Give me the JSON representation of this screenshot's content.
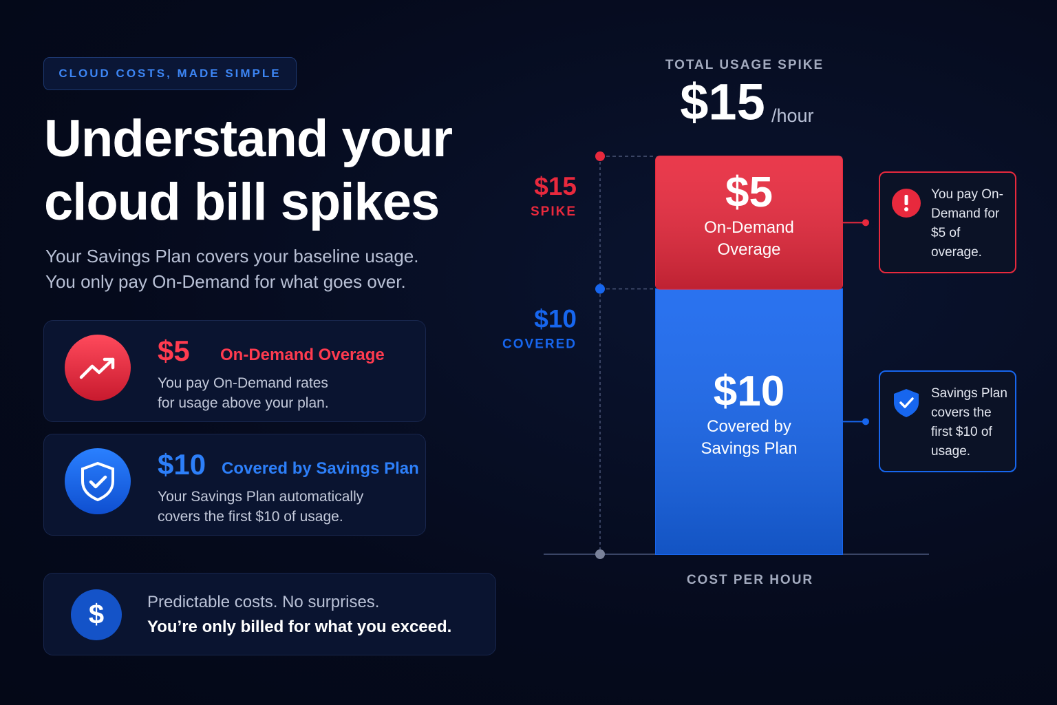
{
  "badge": "CLOUD COSTS, MADE SIMPLE",
  "title_lines": [
    "Understand your",
    "cloud bill spikes"
  ],
  "subtitle_lines": [
    "Your Savings Plan covers your baseline usage.",
    "You only pay On-Demand for what goes over."
  ],
  "cards": [
    {
      "amount": "$5",
      "label": "On-Demand Overage",
      "text_lines": [
        "You pay On-Demand rates",
        "for usage above your plan."
      ]
    },
    {
      "amount": "$10",
      "label": "Covered by Savings Plan",
      "text_lines": [
        "Your Savings Plan automatically",
        "covers the first $10 of usage."
      ]
    }
  ],
  "footer": {
    "line1": "Predictable costs. No surprises.",
    "line2": "You’re only billed for what you exceed."
  },
  "chart_data": {
    "type": "stacked-bar",
    "title": "TOTAL USAGE SPIKE",
    "total_label": "$15",
    "total_unit": "/hour",
    "x_label": "COST PER HOUR",
    "ylim": [
      0,
      15
    ],
    "yticks": [
      {
        "value": 10,
        "label": "$10"
      },
      {
        "value": 15,
        "label": "$15"
      }
    ],
    "ytick_notes": [
      "COVERED",
      "SPIKE"
    ],
    "series": [
      {
        "name": "Covered by Savings Plan",
        "color": "#1766ee",
        "values": [
          10
        ],
        "value_labels": [
          "$10"
        ],
        "callout": "Savings Plan covers the first $10 of usage."
      },
      {
        "name": "On-Demand Overage",
        "color": "#e8293d",
        "values": [
          5
        ],
        "value_labels": [
          "$5"
        ],
        "callout": "You pay On-Demand for $5 of overage."
      }
    ]
  }
}
